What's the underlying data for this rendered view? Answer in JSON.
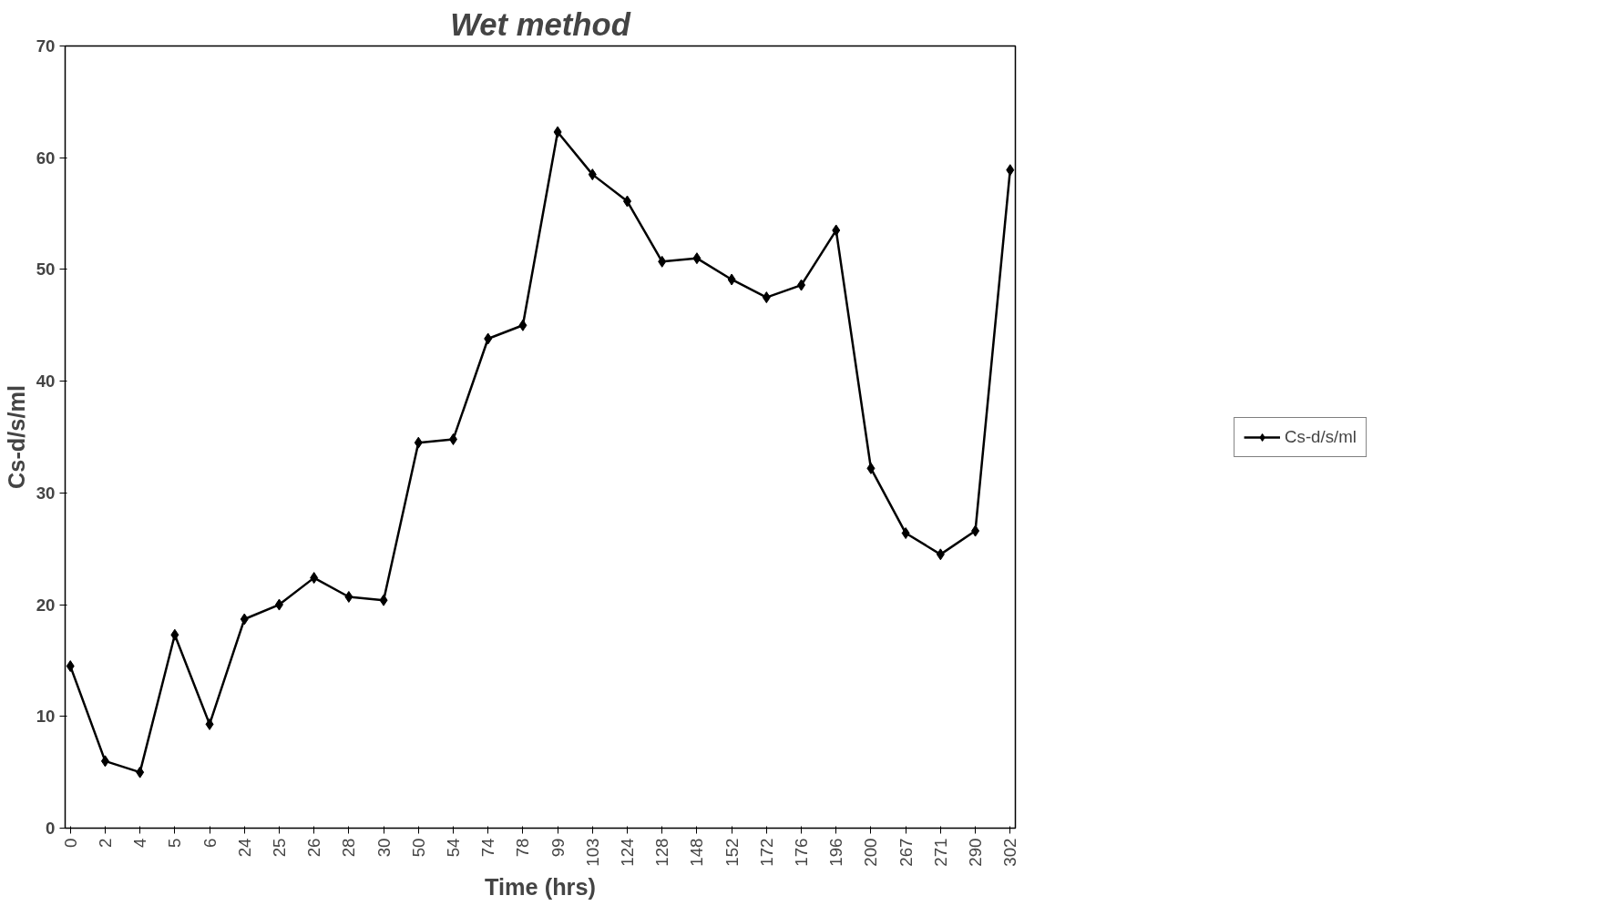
{
  "chart_data": {
    "type": "line",
    "title": "Wet method",
    "xlabel": "Time (hrs)",
    "ylabel": "Cs-d/s/ml",
    "categories": [
      "0",
      "2",
      "4",
      "5",
      "6",
      "24",
      "25",
      "26",
      "28",
      "30",
      "50",
      "54",
      "74",
      "78",
      "99",
      "103",
      "124",
      "128",
      "148",
      "152",
      "172",
      "176",
      "196",
      "200",
      "267",
      "271",
      "290",
      "302"
    ],
    "series": [
      {
        "name": "Cs-d/s/ml",
        "color": "#000000",
        "values": [
          14.5,
          6.0,
          5.0,
          17.3,
          9.3,
          18.7,
          20.0,
          22.4,
          20.7,
          20.4,
          34.5,
          34.8,
          43.8,
          45.0,
          62.3,
          58.5,
          56.1,
          50.7,
          51.0,
          49.1,
          47.5,
          48.6,
          53.5,
          32.2,
          26.4,
          24.5,
          26.6,
          58.9
        ]
      }
    ],
    "ylim": [
      0,
      70
    ],
    "yticks": [
      0,
      10,
      20,
      30,
      40,
      50,
      60,
      70
    ],
    "grid": false,
    "legend": "right",
    "marker": "diamond",
    "line_style": "solid"
  }
}
